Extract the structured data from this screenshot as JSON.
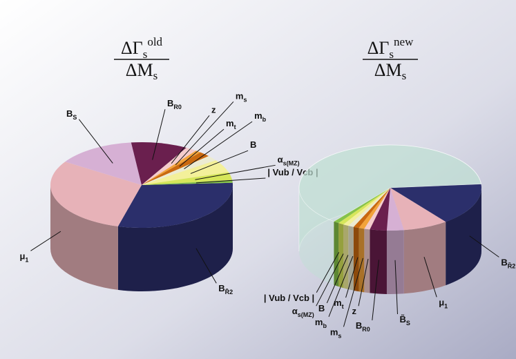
{
  "chart_data": [
    {
      "type": "pie",
      "title": {
        "numerator": "ΔΓ",
        "numerator_sub": "s",
        "numerator_sup": "old",
        "denominator": "ΔM",
        "denominator_sub": "s"
      },
      "categories": [
        "B",
        "μ",
        "B",
        "B",
        "z",
        "m",
        "m",
        "m",
        "B",
        "α",
        "| Vub / Vcb |"
      ],
      "subscripts": [
        "R̃2",
        "1",
        "S",
        "R0",
        null,
        "s",
        "t",
        "b",
        null,
        "s(MZ)",
        null
      ],
      "values": [
        30,
        30,
        14,
        10,
        2,
        1,
        2,
        2,
        5,
        3,
        1
      ],
      "colors": [
        "#2b2f6b",
        "#e7b2b8",
        "#d6b0d4",
        "#6a1f4e",
        "#f4cccc",
        "#f2a33a",
        "#c9690f",
        "#ecebd2",
        "#f3f09a",
        "#d6e65a",
        "#86c24a"
      ]
    },
    {
      "type": "pie",
      "title": {
        "numerator": "ΔΓ",
        "numerator_sub": "s",
        "numerator_sup": "new",
        "denominator": "ΔM",
        "denominator_sub": "s"
      },
      "categories": [
        "B",
        "μ",
        "B̃",
        "B",
        "z",
        "m",
        "m",
        "m",
        "B",
        "α",
        "| Vub / Vcb |",
        null
      ],
      "subscripts": [
        "R̃2",
        "1",
        "S",
        "R0",
        null,
        "s",
        "t",
        "b",
        null,
        "s(MZ)",
        null,
        null
      ],
      "values": [
        16,
        8,
        3,
        3,
        1,
        1,
        1,
        1,
        1,
        1,
        1,
        63
      ],
      "colors": [
        "#2b2f6b",
        "#e7b2b8",
        "#d6b0d4",
        "#6a1f4e",
        "#f4cccc",
        "#f2a33a",
        "#c9690f",
        "#ecebd2",
        "#f3f09a",
        "#d6e65a",
        "#86c24a",
        "rgba(190,225,210,0.45)"
      ]
    }
  ]
}
